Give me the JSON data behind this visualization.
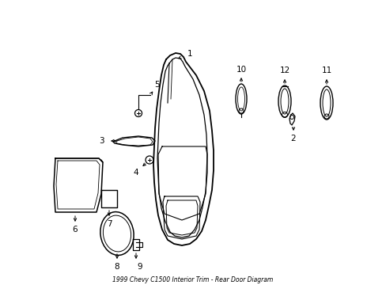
{
  "title": "1999 Chevy C1500 Interior Trim - Rear Door Diagram",
  "bg_color": "#ffffff",
  "line_color": "#000000",
  "figsize": [
    4.89,
    3.6
  ],
  "dpi": 100
}
